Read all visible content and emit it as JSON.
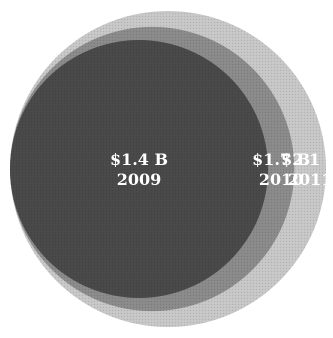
{
  "chart_data": {
    "type": "bubble",
    "title": "",
    "items": [
      {
        "year": "2011",
        "value": 2.1,
        "label": "$2.1 B",
        "fill": "#c9c9c9",
        "shade": "#a8a8a8"
      },
      {
        "year": "2010",
        "value": 1.7,
        "label": "$1.7 B",
        "fill": "#8c8c8c",
        "shade": "#6e6e6e"
      },
      {
        "year": "2009",
        "value": 1.4,
        "label": "$1.4 B",
        "fill": "#4a4a4a",
        "shade": "#2f2f2f"
      }
    ],
    "grid": false,
    "legend": "none",
    "arrangement": "nested circles aligned on the left"
  }
}
